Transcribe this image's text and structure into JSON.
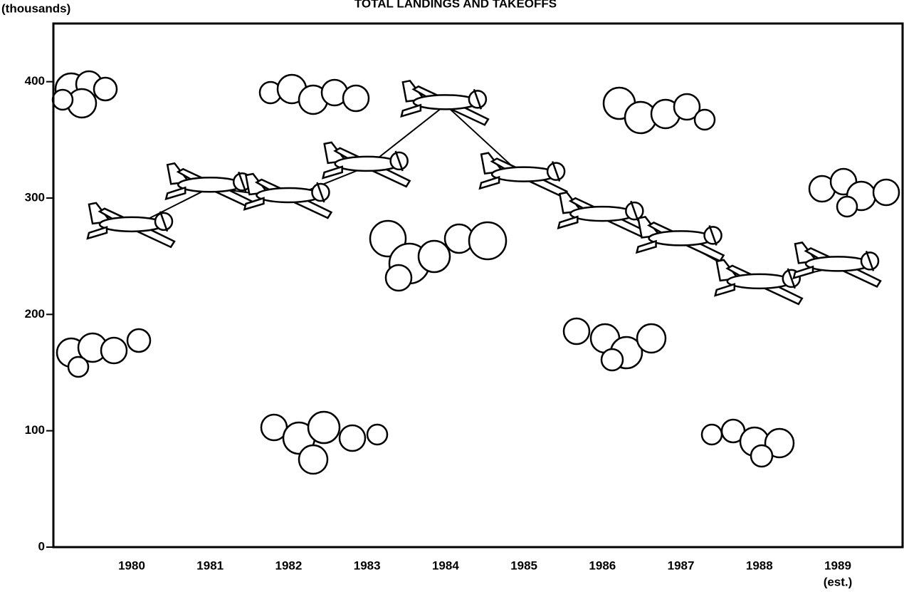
{
  "chart_data": {
    "type": "pictogram-line",
    "title": "TOTAL LANDINGS AND TAKEOFFS",
    "y_label": "(thousands)",
    "categories": [
      "1980",
      "1981",
      "1982",
      "1983",
      "1984",
      "1985",
      "1986",
      "1987",
      "1988",
      "1989"
    ],
    "annotation": "(est.)",
    "values": [
      275,
      309,
      300,
      327,
      380,
      318,
      284,
      263,
      226,
      241
    ],
    "color": "#000000",
    "ylim": [
      0,
      450
    ],
    "yticks": [
      0,
      100,
      200,
      300,
      400
    ]
  }
}
